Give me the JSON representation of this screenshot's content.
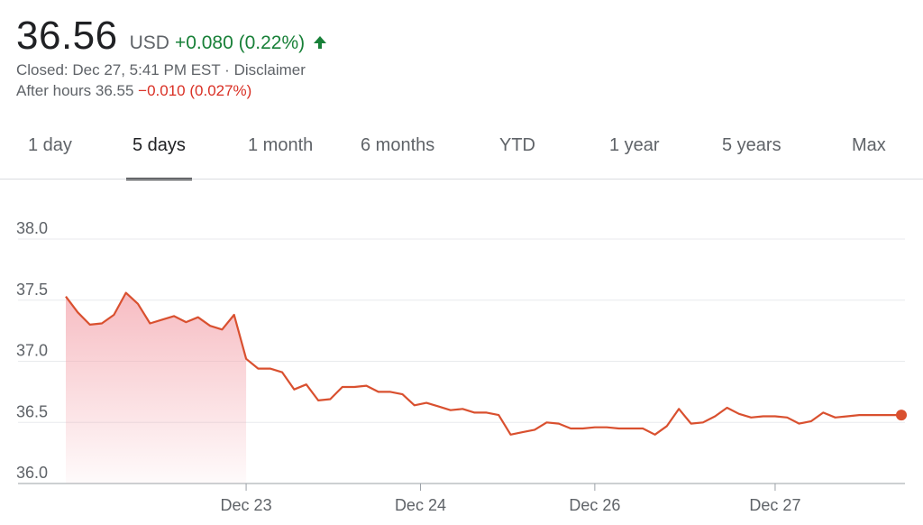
{
  "quote": {
    "price": "36.56",
    "currency": "USD",
    "change": "+0.080 (0.22%)",
    "status": "Closed: Dec 27, 5:41 PM EST · Disclaimer",
    "after_hours_label": "After hours 36.55",
    "after_hours_change": "−0.010 (0.027%)"
  },
  "colors": {
    "up": "#188038",
    "down": "#d93025",
    "line": "#d9502f"
  },
  "tabs": [
    {
      "label": "1 day",
      "active": false
    },
    {
      "label": "5 days",
      "active": true
    },
    {
      "label": "1 month",
      "active": false
    },
    {
      "label": "6 months",
      "active": false
    },
    {
      "label": "YTD",
      "active": false
    },
    {
      "label": "1 year",
      "active": false
    },
    {
      "label": "5 years",
      "active": false
    },
    {
      "label": "Max",
      "active": false
    }
  ],
  "chart_data": {
    "type": "area",
    "x_start": 0,
    "x_end": 69.5,
    "ylim": [
      36.0,
      38.0
    ],
    "y_ticks": [
      "38.0",
      "37.5",
      "37.0",
      "36.5",
      "36.0"
    ],
    "x_ticks": [
      {
        "label": "Dec 23",
        "x": 15
      },
      {
        "label": "Dec 24",
        "x": 29.5
      },
      {
        "label": "Dec 26",
        "x": 44
      },
      {
        "label": "Dec 27",
        "x": 59
      }
    ],
    "grid": true,
    "series": [
      {
        "x": [
          0,
          1,
          2,
          3,
          4,
          5,
          6,
          7,
          8,
          9,
          10,
          11,
          12,
          13,
          14,
          15,
          16,
          17,
          18,
          19,
          20,
          21,
          22,
          23,
          24,
          25,
          26,
          27,
          28,
          29,
          30,
          31,
          32,
          33,
          34,
          35,
          36,
          37,
          38,
          39,
          40,
          41,
          42,
          43,
          44,
          45,
          46,
          47,
          48,
          49,
          50,
          51,
          52,
          53,
          54,
          55,
          56,
          57,
          58,
          59,
          60,
          61,
          62,
          63,
          64,
          65,
          66,
          67,
          68,
          69
        ],
        "values": [
          37.53,
          37.4,
          37.3,
          37.31,
          37.38,
          37.56,
          37.47,
          37.31,
          37.34,
          37.37,
          37.32,
          37.36,
          37.29,
          37.26,
          37.38,
          37.02,
          36.94,
          36.94,
          36.91,
          36.77,
          36.81,
          36.68,
          36.69,
          36.79,
          36.79,
          36.8,
          36.75,
          36.75,
          36.73,
          36.64,
          36.66,
          36.63,
          36.6,
          36.61,
          36.58,
          36.58,
          36.56,
          36.4,
          36.42,
          36.44,
          36.5,
          36.49,
          36.45,
          36.45,
          36.46,
          36.46,
          36.45,
          36.45,
          36.45,
          36.4,
          36.47,
          36.61,
          36.49,
          36.5,
          36.55,
          36.62,
          36.57,
          36.54,
          36.55,
          36.55,
          36.54,
          36.49,
          36.51,
          36.58,
          36.54,
          36.55,
          36.56,
          36.56,
          36.56,
          36.56
        ]
      }
    ],
    "last_point": {
      "x": 69.5,
      "y": 36.56
    }
  }
}
